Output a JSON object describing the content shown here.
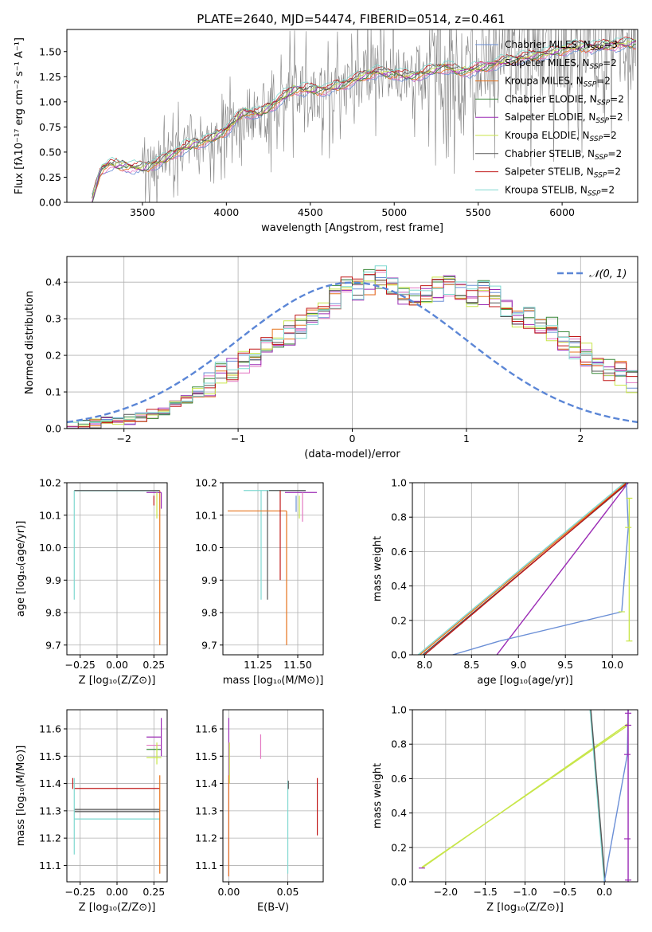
{
  "figure_title": "PLATE=2640, MJD=54474, FIBERID=0514, z=0.461",
  "colors": {
    "chabrier_miles": "#6b8fd6",
    "salpeter_miles": "#e377c2",
    "kroupa_miles": "#e6731c",
    "chabrier_elodie": "#3a8a3a",
    "salpeter_elodie": "#9b2bb5",
    "kroupa_elodie": "#c8e64a",
    "chabrier_stelib": "#555555",
    "salpeter_stelib": "#c01818",
    "kroupa_stelib": "#7fd8d0",
    "data": "#808080",
    "normal": "#5b86d6"
  },
  "chart_data": [
    {
      "id": "spectrum",
      "type": "line",
      "title": "PLATE=2640, MJD=54474, FIBERID=0514, z=0.461",
      "xlabel": "wavelength [Angstrom, rest frame]",
      "ylabel": "Flux [fλ10⁻¹⁷ erg cm⁻² s⁻¹ A⁻¹]",
      "xlim": [
        3050,
        6450
      ],
      "ylim": [
        0,
        1.72
      ],
      "xticks": [
        "3500",
        "4000",
        "4500",
        "5000",
        "5500",
        "6000"
      ],
      "xtick_values": [
        3500,
        4000,
        4500,
        5000,
        5500,
        6000
      ],
      "yticks": [
        "0.00",
        "0.25",
        "0.50",
        "0.75",
        "1.00",
        "1.25",
        "1.50"
      ],
      "ytick_values": [
        0,
        0.25,
        0.5,
        0.75,
        1.0,
        1.25,
        1.5
      ],
      "legend_position": "top-right",
      "model_anchor": {
        "x": [
          3200,
          3250,
          3300,
          3400,
          3500,
          3600,
          3700,
          3800,
          3900,
          4000,
          4100,
          4200,
          4300,
          4400,
          4500,
          4600,
          4700,
          4800,
          4900,
          5000,
          5100,
          5200,
          5300,
          5400,
          5500,
          5600,
          5700,
          5800,
          5900,
          6000,
          6100,
          6200,
          6300,
          6400
        ],
        "y": [
          0.02,
          0.32,
          0.38,
          0.36,
          0.34,
          0.4,
          0.5,
          0.58,
          0.62,
          0.72,
          0.9,
          0.88,
          1.0,
          1.12,
          1.12,
          1.12,
          1.18,
          1.25,
          1.3,
          1.28,
          1.25,
          1.3,
          1.35,
          1.3,
          1.33,
          1.38,
          1.42,
          1.45,
          1.48,
          1.52,
          1.55,
          1.55,
          1.57,
          1.58
        ]
      },
      "series": [
        {
          "name": "Chabrier MILES, N_SSP=3",
          "legend_main": "Chabrier MILES, N",
          "legend_sub": "SSP",
          "legend_tail": "=3",
          "color_key": "chabrier_miles"
        },
        {
          "name": "Salpeter MILES, N_SSP=2",
          "legend_main": "Salpeter MILES, N",
          "legend_sub": "SSP",
          "legend_tail": "=2",
          "color_key": "salpeter_miles"
        },
        {
          "name": "Kroupa MILES, N_SSP=2",
          "legend_main": "Kroupa MILES, N",
          "legend_sub": "SSP",
          "legend_tail": "=2",
          "color_key": "kroupa_miles"
        },
        {
          "name": "Chabrier ELODIE, N_SSP=2",
          "legend_main": "Chabrier ELODIE, N",
          "legend_sub": "SSP",
          "legend_tail": "=2",
          "color_key": "chabrier_elodie"
        },
        {
          "name": "Salpeter ELODIE, N_SSP=2",
          "legend_main": "Salpeter ELODIE, N",
          "legend_sub": "SSP",
          "legend_tail": "=2",
          "color_key": "salpeter_elodie"
        },
        {
          "name": "Kroupa ELODIE, N_SSP=2",
          "legend_main": "Kroupa ELODIE, N",
          "legend_sub": "SSP",
          "legend_tail": "=2",
          "color_key": "kroupa_elodie"
        },
        {
          "name": "Chabrier STELIB, N_SSP=2",
          "legend_main": "Chabrier STELIB, N",
          "legend_sub": "SSP",
          "legend_tail": "=2",
          "color_key": "chabrier_stelib"
        },
        {
          "name": "Salpeter STELIB, N_SSP=2",
          "legend_main": "Salpeter STELIB, N",
          "legend_sub": "SSP",
          "legend_tail": "=2",
          "color_key": "salpeter_stelib"
        },
        {
          "name": "Kroupa STELIB, N_SSP=2",
          "legend_main": "Kroupa STELIB, N",
          "legend_sub": "SSP",
          "legend_tail": "=2",
          "color_key": "kroupa_stelib"
        }
      ]
    },
    {
      "id": "residuals",
      "type": "bar",
      "xlabel": "(data-model)/error",
      "ylabel": "Normed distribution",
      "xlim": [
        -2.5,
        2.5
      ],
      "ylim": [
        0,
        0.47
      ],
      "xticks": [
        "−2",
        "−1",
        "0",
        "1",
        "2"
      ],
      "xtick_values": [
        -2,
        -1,
        0,
        1,
        2
      ],
      "yticks": [
        "0.0",
        "0.1",
        "0.2",
        "0.3",
        "0.4"
      ],
      "ytick_values": [
        0,
        0.1,
        0.2,
        0.3,
        0.4
      ],
      "grid": true,
      "legend_position": "top-right",
      "normal_label": "𝒩(0, 1)",
      "bin_edges_start": -2.5,
      "bin_width": 0.1,
      "base_values": [
        0.005,
        0.01,
        0.015,
        0.02,
        0.022,
        0.025,
        0.03,
        0.04,
        0.05,
        0.065,
        0.08,
        0.1,
        0.12,
        0.15,
        0.16,
        0.18,
        0.2,
        0.23,
        0.25,
        0.26,
        0.28,
        0.31,
        0.33,
        0.36,
        0.38,
        0.38,
        0.4,
        0.41,
        0.4,
        0.37,
        0.36,
        0.36,
        0.38,
        0.39,
        0.37,
        0.36,
        0.37,
        0.36,
        0.33,
        0.31,
        0.3,
        0.29,
        0.27,
        0.24,
        0.22,
        0.2,
        0.17,
        0.16,
        0.15,
        0.13,
        0.11,
        0.09,
        0.08,
        0.07,
        0.06,
        0.055,
        0.05,
        0.045,
        0.04,
        0.04
      ]
    },
    {
      "id": "age_vs_Z",
      "type": "scatter",
      "xlabel": "Z [log₁₀(Z/Z⊙)]",
      "ylabel": "age  [log₁₀(age/yr)]",
      "xlim": [
        -0.34,
        0.34
      ],
      "ylim": [
        9.67,
        10.2
      ],
      "xticks": [
        "−0.25",
        "0.00",
        "0.25"
      ],
      "xtick_values": [
        -0.25,
        0,
        0.25
      ],
      "yticks": [
        "9.7",
        "9.8",
        "9.9",
        "10.0",
        "10.1",
        "10.2"
      ],
      "ytick_values": [
        9.7,
        9.8,
        9.9,
        10.0,
        10.1,
        10.2
      ],
      "grid": true
    },
    {
      "id": "age_vs_mass",
      "type": "scatter",
      "xlabel": "mass [log₁₀(M/M⊙)]",
      "ylabel": "",
      "xlim": [
        11.03,
        11.66
      ],
      "ylim": [
        9.67,
        10.2
      ],
      "xticks": [
        "11.25",
        "11.50"
      ],
      "xtick_values": [
        11.25,
        11.5
      ],
      "yticks": [
        "9.7",
        "9.8",
        "9.9",
        "10.0",
        "10.1",
        "10.2"
      ],
      "ytick_values": [
        9.7,
        9.8,
        9.9,
        10.0,
        10.1,
        10.2
      ],
      "grid": true
    },
    {
      "id": "massweight_vs_age",
      "type": "line",
      "xlabel": "age  [log₁₀(age/yr)]",
      "ylabel": "mass weight",
      "xlim": [
        7.87,
        10.27
      ],
      "ylim": [
        0,
        1
      ],
      "xticks": [
        "8.0",
        "8.5",
        "9.0",
        "9.5",
        "10.0"
      ],
      "xtick_values": [
        8.0,
        8.5,
        9.0,
        9.5,
        10.0
      ],
      "yticks": [
        "0.0",
        "0.2",
        "0.4",
        "0.6",
        "0.8",
        "1.0"
      ],
      "ytick_values": [
        0,
        0.2,
        0.4,
        0.6,
        0.8,
        1.0
      ],
      "grid": true
    },
    {
      "id": "mass_vs_Z",
      "type": "scatter",
      "xlabel": "Z [log₁₀(Z/Z⊙)]",
      "ylabel": "mass [log₁₀(M/M⊙)]",
      "xlim": [
        -0.34,
        0.34
      ],
      "ylim": [
        11.04,
        11.67
      ],
      "xticks": [
        "−0.25",
        "0.00",
        "0.25"
      ],
      "xtick_values": [
        -0.25,
        0,
        0.25
      ],
      "yticks": [
        "11.1",
        "11.2",
        "11.3",
        "11.4",
        "11.5",
        "11.6"
      ],
      "ytick_values": [
        11.1,
        11.2,
        11.3,
        11.4,
        11.5,
        11.6
      ],
      "grid": true
    },
    {
      "id": "mass_vs_ebv",
      "type": "scatter",
      "xlabel": "E(B-V)",
      "ylabel": "",
      "xlim": [
        -0.005,
        0.08
      ],
      "ylim": [
        11.04,
        11.67
      ],
      "xticks": [
        "0.00",
        "0.05"
      ],
      "xtick_values": [
        0,
        0.05
      ],
      "yticks": [
        "11.1",
        "11.2",
        "11.3",
        "11.4",
        "11.5",
        "11.6"
      ],
      "ytick_values": [
        11.1,
        11.2,
        11.3,
        11.4,
        11.5,
        11.6
      ],
      "grid": true
    },
    {
      "id": "massweight_vs_Z",
      "type": "line",
      "xlabel": "Z [log₁₀(Z/Z⊙)]",
      "ylabel": "mass weight",
      "xlim": [
        -2.42,
        0.42
      ],
      "ylim": [
        0,
        1
      ],
      "xticks": [
        "−2.0",
        "−1.5",
        "−1.0",
        "−0.5",
        "0.0"
      ],
      "xtick_values": [
        -2.0,
        -1.5,
        -1.0,
        -0.5,
        0.0
      ],
      "yticks": [
        "0.0",
        "0.2",
        "0.4",
        "0.6",
        "0.8",
        "1.0"
      ],
      "ytick_values": [
        0,
        0.2,
        0.4,
        0.6,
        0.8,
        1.0
      ],
      "grid": true
    }
  ]
}
